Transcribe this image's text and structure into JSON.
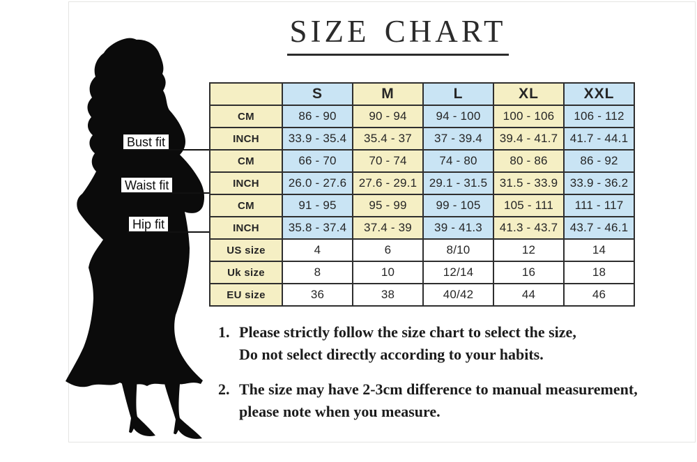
{
  "page": {
    "title": "SIZE CHART"
  },
  "colors": {
    "cream": "#f5efc4",
    "blue": "#c9e4f4",
    "table_border": "#2e2e2e",
    "text": "#262626",
    "silhouette": "#0b0b0b"
  },
  "figure": {
    "pointers": [
      {
        "label": "Bust fit"
      },
      {
        "label": "Waist fit"
      },
      {
        "label": "Hip fit"
      }
    ]
  },
  "chart_data": {
    "type": "table",
    "title": "SIZE CHART",
    "columns": [
      "",
      "S",
      "M",
      "L",
      "XL",
      "XXL"
    ],
    "column_colors": {
      "S": "blue",
      "M": "cream",
      "L": "blue",
      "XL": "cream",
      "XXL": "blue"
    },
    "rows": [
      {
        "group": "Bust fit",
        "label": "CM",
        "values": [
          "86 - 90",
          "90 - 94",
          "94 - 100",
          "100 - 106",
          "106 - 112"
        ]
      },
      {
        "group": "Bust fit",
        "label": "INCH",
        "values": [
          "33.9 - 35.4",
          "35.4 - 37",
          "37 - 39.4",
          "39.4 - 41.7",
          "41.7 - 44.1"
        ]
      },
      {
        "group": "Waist fit",
        "label": "CM",
        "values": [
          "66 - 70",
          "70 - 74",
          "74 - 80",
          "80 - 86",
          "86 - 92"
        ]
      },
      {
        "group": "Waist fit",
        "label": "INCH",
        "values": [
          "26.0 - 27.6",
          "27.6 - 29.1",
          "29.1 - 31.5",
          "31.5 - 33.9",
          "33.9 - 36.2"
        ]
      },
      {
        "group": "Hip fit",
        "label": "CM",
        "values": [
          "91 - 95",
          "95 - 99",
          "99 - 105",
          "105 - 111",
          "111 - 117"
        ]
      },
      {
        "group": "Hip fit",
        "label": "INCH",
        "values": [
          "35.8 - 37.4",
          "37.4 - 39",
          "39 - 41.3",
          "41.3 - 43.7",
          "43.7 - 46.1"
        ]
      },
      {
        "group": "",
        "label": "US size",
        "values": [
          "4",
          "6",
          "8/10",
          "12",
          "14"
        ]
      },
      {
        "group": "",
        "label": "Uk size",
        "values": [
          "8",
          "10",
          "12/14",
          "16",
          "18"
        ]
      },
      {
        "group": "",
        "label": "EU size",
        "values": [
          "36",
          "38",
          "40/42",
          "44",
          "46"
        ]
      }
    ]
  },
  "notes": [
    {
      "num": "1.",
      "line1": "Please strictly follow the size chart to select the size,",
      "line2": "Do not select directly according to your habits."
    },
    {
      "num": "2.",
      "line1": "The size may have 2-3cm difference  to manual measurement,",
      "line2": "please note when you measure."
    }
  ]
}
